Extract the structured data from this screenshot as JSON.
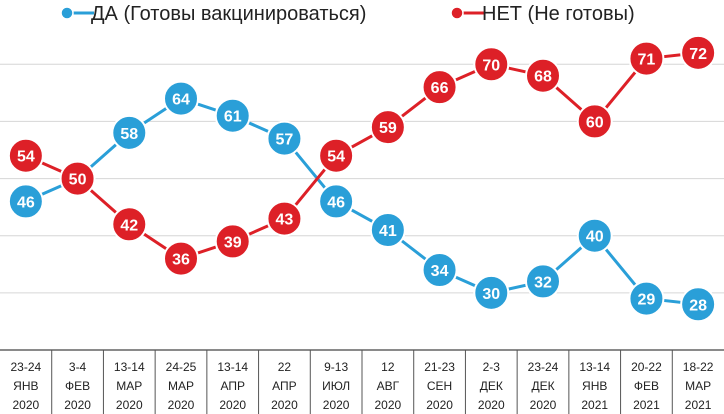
{
  "chart_data": {
    "type": "line",
    "title": "",
    "xlabel": "",
    "ylabel": "",
    "ylim": [
      20,
      76
    ],
    "grid": true,
    "legend_position": "top",
    "categories": [
      [
        "23-24",
        "ЯНВ",
        "2020"
      ],
      [
        "3-4",
        "ФЕВ",
        "2020"
      ],
      [
        "13-14",
        "МАР",
        "2020"
      ],
      [
        "24-25",
        "МАР",
        "2020"
      ],
      [
        "13-14",
        "АПР",
        "2020"
      ],
      [
        "22",
        "АПР",
        "2020"
      ],
      [
        "9-13",
        "ИЮЛ",
        "2020"
      ],
      [
        "12",
        "АВГ",
        "2020"
      ],
      [
        "21-23",
        "СЕН",
        "2020"
      ],
      [
        "2-3",
        "ДЕК",
        "2020"
      ],
      [
        "23-24",
        "ДЕК",
        "2020"
      ],
      [
        "13-14",
        "ЯНВ",
        "2021"
      ],
      [
        "20-22",
        "ФЕВ",
        "2021"
      ],
      [
        "18-22",
        "МАР",
        "2021"
      ]
    ],
    "series": [
      {
        "name": "ДА (Готовы вакцинироваться)",
        "color": "#2a9fd8",
        "values": [
          46,
          50,
          58,
          64,
          61,
          57,
          46,
          41,
          34,
          30,
          32,
          40,
          29,
          28
        ],
        "labels": [
          "46",
          "",
          "58",
          "64",
          "61",
          "57",
          "46",
          "41",
          "34",
          "30",
          "32",
          "40",
          "29",
          "28"
        ]
      },
      {
        "name": "НЕТ (Не готовы)",
        "color": "#dd2027",
        "values": [
          54,
          50,
          42,
          36,
          39,
          43,
          54,
          59,
          66,
          70,
          68,
          60,
          71,
          72
        ],
        "labels": [
          "54",
          "50",
          "42",
          "36",
          "39",
          "43",
          "54",
          "59",
          "66",
          "70",
          "68",
          "60",
          "71",
          "72"
        ]
      }
    ]
  }
}
